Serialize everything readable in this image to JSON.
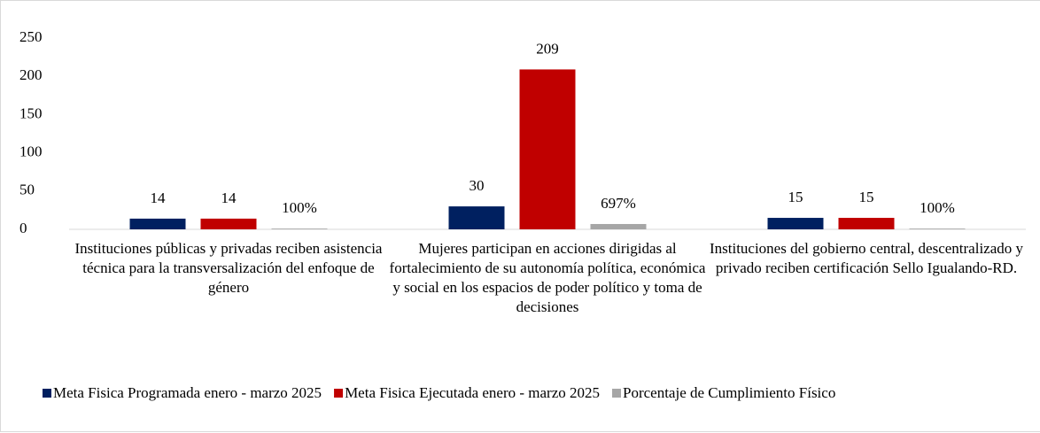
{
  "chart_data": {
    "type": "bar",
    "categories": [
      "Instituciones públicas y privadas reciben asistencia técnica para la transversalización del enfoque de género",
      "Mujeres participan en acciones dirigidas al fortalecimiento de su autonomía política, económica y social en los espacios de poder político y toma de decisiones",
      "Instituciones del gobierno central, descentralizado y privado reciben certificación Sello Igualando-RD."
    ],
    "series": [
      {
        "name": "Meta Fisica Programada enero - marzo 2025",
        "color": "#002060",
        "values": [
          14,
          30,
          15
        ]
      },
      {
        "name": "Meta Fisica Ejecutada enero - marzo 2025",
        "color": "#c00000",
        "values": [
          14,
          209,
          15
        ]
      },
      {
        "name": "Porcentaje de Cumplimiento Físico",
        "color": "#a6a6a6",
        "values": [
          1,
          6.97,
          1
        ],
        "value_labels": [
          "100%",
          "697%",
          "100%"
        ]
      }
    ],
    "ylim": [
      0,
      250
    ],
    "yticks": [
      0,
      50,
      100,
      150,
      200,
      250
    ],
    "grid": false,
    "legend": "bottom"
  }
}
